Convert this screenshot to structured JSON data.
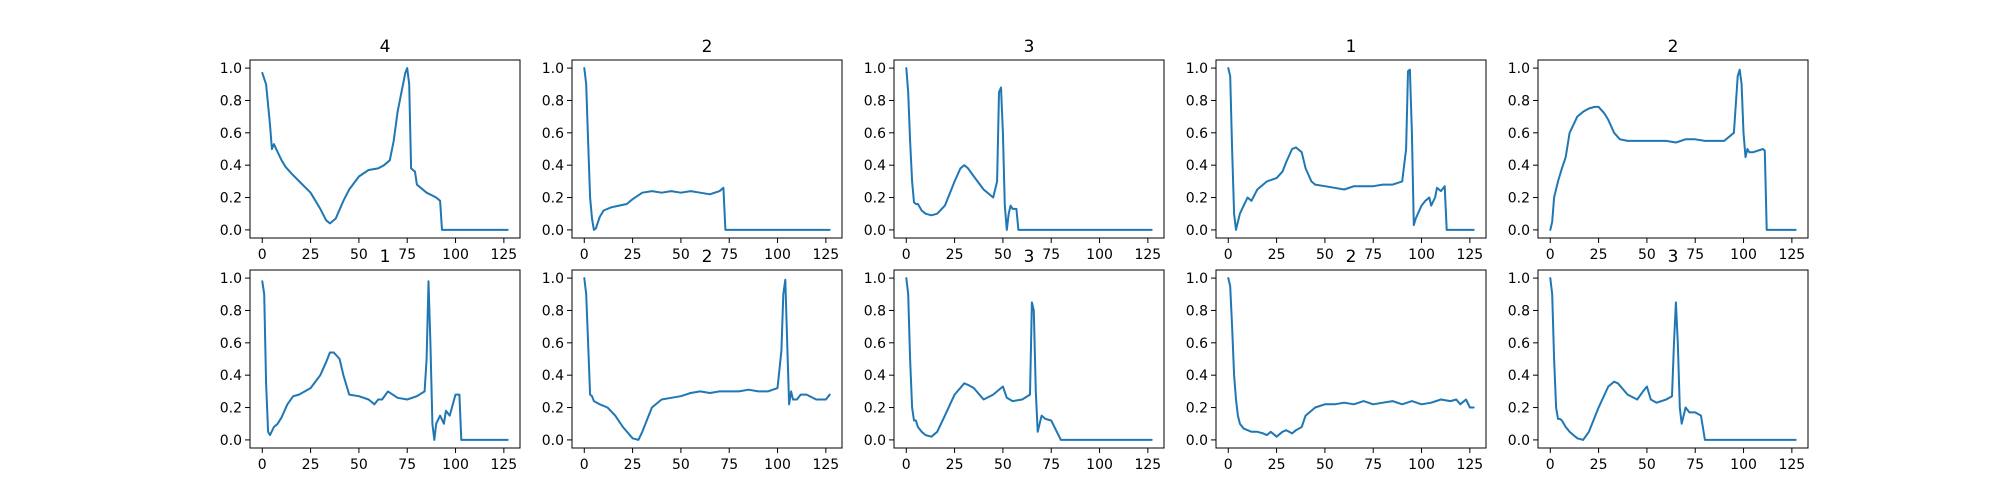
{
  "figure": {
    "background": "#ffffff"
  },
  "series_color": "#1f77b4",
  "chart_data": [
    {
      "type": "line",
      "title": "4",
      "xlim": [
        0,
        127
      ],
      "ylim": [
        0,
        1
      ],
      "xticks": [
        "0",
        "25",
        "50",
        "75",
        "100",
        "125"
      ],
      "yticks": [
        "0.0",
        "0.2",
        "0.4",
        "0.6",
        "0.8",
        "1.0"
      ],
      "series": [
        {
          "x": [
            0,
            2,
            4,
            5,
            6,
            8,
            10,
            12,
            15,
            20,
            25,
            30,
            33,
            35,
            38,
            42,
            45,
            50,
            55,
            60,
            63,
            66,
            68,
            70,
            72,
            74,
            75,
            76,
            77,
            79,
            80,
            85,
            90,
            92,
            93,
            95,
            100,
            110,
            120,
            127
          ],
          "y": [
            0.97,
            0.9,
            0.65,
            0.5,
            0.53,
            0.48,
            0.43,
            0.39,
            0.35,
            0.29,
            0.23,
            0.13,
            0.06,
            0.04,
            0.07,
            0.18,
            0.25,
            0.33,
            0.37,
            0.38,
            0.4,
            0.43,
            0.55,
            0.73,
            0.85,
            0.97,
            1.0,
            0.9,
            0.38,
            0.36,
            0.28,
            0.23,
            0.2,
            0.18,
            0.0,
            0.0,
            0.0,
            0.0,
            0.0,
            0.0
          ]
        }
      ]
    },
    {
      "type": "line",
      "title": "2",
      "xlim": [
        0,
        127
      ],
      "ylim": [
        0,
        1
      ],
      "xticks": [
        "0",
        "25",
        "50",
        "75",
        "100",
        "125"
      ],
      "yticks": [
        "0.0",
        "0.2",
        "0.4",
        "0.6",
        "0.8",
        "1.0"
      ],
      "series": [
        {
          "x": [
            0,
            1,
            2,
            3,
            4,
            5,
            6,
            8,
            10,
            14,
            18,
            22,
            25,
            30,
            35,
            40,
            45,
            50,
            55,
            60,
            65,
            70,
            72,
            73,
            75,
            80,
            100,
            127
          ],
          "y": [
            1.0,
            0.9,
            0.55,
            0.2,
            0.07,
            0.0,
            0.01,
            0.08,
            0.12,
            0.14,
            0.15,
            0.16,
            0.19,
            0.23,
            0.24,
            0.23,
            0.24,
            0.23,
            0.24,
            0.23,
            0.22,
            0.24,
            0.26,
            0.0,
            0.0,
            0.0,
            0.0,
            0.0
          ]
        }
      ]
    },
    {
      "type": "line",
      "title": "3",
      "xlim": [
        0,
        127
      ],
      "ylim": [
        0,
        1
      ],
      "xticks": [
        "0",
        "25",
        "50",
        "75",
        "100",
        "125"
      ],
      "yticks": [
        "0.0",
        "0.2",
        "0.4",
        "0.6",
        "0.8",
        "1.0"
      ],
      "series": [
        {
          "x": [
            0,
            1,
            2,
            3,
            4,
            5,
            6,
            8,
            10,
            13,
            16,
            20,
            25,
            28,
            30,
            32,
            35,
            40,
            45,
            47,
            48,
            49,
            50,
            51,
            52,
            53,
            54,
            55,
            57,
            58,
            60,
            70,
            100,
            127
          ],
          "y": [
            1.0,
            0.85,
            0.55,
            0.3,
            0.17,
            0.16,
            0.16,
            0.12,
            0.1,
            0.09,
            0.1,
            0.15,
            0.3,
            0.38,
            0.4,
            0.38,
            0.33,
            0.25,
            0.2,
            0.3,
            0.85,
            0.88,
            0.6,
            0.15,
            0.0,
            0.1,
            0.15,
            0.13,
            0.13,
            0.0,
            0.0,
            0.0,
            0.0,
            0.0
          ]
        }
      ]
    },
    {
      "type": "line",
      "title": "1",
      "xlim": [
        0,
        127
      ],
      "ylim": [
        0,
        1
      ],
      "xticks": [
        "0",
        "25",
        "50",
        "75",
        "100",
        "125"
      ],
      "yticks": [
        "0.0",
        "0.2",
        "0.4",
        "0.6",
        "0.8",
        "1.0"
      ],
      "series": [
        {
          "x": [
            0,
            1,
            2,
            3,
            4,
            5,
            6,
            8,
            10,
            12,
            15,
            18,
            20,
            25,
            28,
            30,
            33,
            35,
            38,
            40,
            43,
            45,
            50,
            55,
            60,
            65,
            70,
            75,
            80,
            85,
            90,
            92,
            93,
            94,
            95,
            96,
            97,
            100,
            102,
            104,
            105,
            107,
            108,
            110,
            112,
            113,
            115,
            120,
            127
          ],
          "y": [
            1.0,
            0.95,
            0.5,
            0.1,
            0.0,
            0.05,
            0.1,
            0.15,
            0.2,
            0.18,
            0.25,
            0.28,
            0.3,
            0.32,
            0.36,
            0.42,
            0.5,
            0.51,
            0.48,
            0.38,
            0.3,
            0.28,
            0.27,
            0.26,
            0.25,
            0.27,
            0.27,
            0.27,
            0.28,
            0.28,
            0.3,
            0.5,
            0.98,
            0.99,
            0.6,
            0.03,
            0.07,
            0.15,
            0.18,
            0.2,
            0.15,
            0.2,
            0.26,
            0.24,
            0.27,
            0.0,
            0.0,
            0.0,
            0.0
          ]
        }
      ]
    },
    {
      "type": "line",
      "title": "2",
      "xlim": [
        0,
        127
      ],
      "ylim": [
        0,
        1
      ],
      "xticks": [
        "0",
        "25",
        "50",
        "75",
        "100",
        "125"
      ],
      "yticks": [
        "0.0",
        "0.2",
        "0.4",
        "0.6",
        "0.8",
        "1.0"
      ],
      "series": [
        {
          "x": [
            0,
            1,
            2,
            4,
            6,
            8,
            10,
            12,
            14,
            17,
            20,
            23,
            25,
            28,
            30,
            33,
            36,
            40,
            50,
            60,
            65,
            70,
            75,
            80,
            85,
            90,
            95,
            97,
            98,
            99,
            100,
            101,
            102,
            103,
            105,
            110,
            111,
            112,
            115,
            120,
            127
          ],
          "y": [
            0.0,
            0.05,
            0.2,
            0.3,
            0.38,
            0.45,
            0.6,
            0.65,
            0.7,
            0.73,
            0.75,
            0.76,
            0.76,
            0.72,
            0.68,
            0.6,
            0.56,
            0.55,
            0.55,
            0.55,
            0.54,
            0.56,
            0.56,
            0.55,
            0.55,
            0.55,
            0.6,
            0.95,
            0.99,
            0.9,
            0.6,
            0.45,
            0.5,
            0.48,
            0.48,
            0.5,
            0.49,
            0.0,
            0.0,
            0.0,
            0.0
          ]
        }
      ]
    },
    {
      "type": "line",
      "title": "1",
      "xlim": [
        0,
        127
      ],
      "ylim": [
        0,
        1
      ],
      "xticks": [
        "0",
        "25",
        "50",
        "75",
        "100",
        "125"
      ],
      "yticks": [
        "0.0",
        "0.2",
        "0.4",
        "0.6",
        "0.8",
        "1.0"
      ],
      "series": [
        {
          "x": [
            0,
            1,
            2,
            3,
            4,
            6,
            8,
            10,
            13,
            16,
            19,
            22,
            25,
            30,
            33,
            35,
            37,
            40,
            42,
            45,
            50,
            55,
            58,
            60,
            62,
            65,
            70,
            75,
            80,
            84,
            85,
            86,
            87,
            88,
            89,
            90,
            92,
            94,
            95,
            97,
            100,
            102,
            103,
            105,
            110,
            127
          ],
          "y": [
            0.98,
            0.9,
            0.35,
            0.05,
            0.03,
            0.08,
            0.1,
            0.14,
            0.22,
            0.27,
            0.28,
            0.3,
            0.32,
            0.4,
            0.48,
            0.54,
            0.54,
            0.5,
            0.4,
            0.28,
            0.27,
            0.25,
            0.22,
            0.25,
            0.25,
            0.3,
            0.26,
            0.25,
            0.27,
            0.3,
            0.5,
            0.98,
            0.6,
            0.1,
            0.0,
            0.1,
            0.15,
            0.1,
            0.18,
            0.15,
            0.28,
            0.28,
            0.0,
            0.0,
            0.0,
            0.0
          ]
        }
      ]
    },
    {
      "type": "line",
      "title": "2",
      "xlim": [
        0,
        127
      ],
      "ylim": [
        0,
        1
      ],
      "xticks": [
        "0",
        "25",
        "50",
        "75",
        "100",
        "125"
      ],
      "yticks": [
        "0.0",
        "0.2",
        "0.4",
        "0.6",
        "0.8",
        "1.0"
      ],
      "series": [
        {
          "x": [
            0,
            1,
            2,
            3,
            4,
            5,
            8,
            12,
            16,
            20,
            25,
            28,
            30,
            35,
            40,
            45,
            50,
            55,
            60,
            65,
            70,
            75,
            80,
            85,
            90,
            95,
            100,
            102,
            103,
            104,
            105,
            106,
            107,
            108,
            110,
            112,
            115,
            120,
            125,
            127
          ],
          "y": [
            1.0,
            0.9,
            0.6,
            0.28,
            0.27,
            0.24,
            0.22,
            0.2,
            0.15,
            0.08,
            0.01,
            0.0,
            0.05,
            0.2,
            0.25,
            0.26,
            0.27,
            0.29,
            0.3,
            0.29,
            0.3,
            0.3,
            0.3,
            0.31,
            0.3,
            0.3,
            0.32,
            0.55,
            0.9,
            0.99,
            0.6,
            0.22,
            0.3,
            0.25,
            0.25,
            0.28,
            0.28,
            0.25,
            0.25,
            0.28
          ]
        }
      ]
    },
    {
      "type": "line",
      "title": "3",
      "xlim": [
        0,
        127
      ],
      "ylim": [
        0,
        1
      ],
      "xticks": [
        "0",
        "25",
        "50",
        "75",
        "100",
        "125"
      ],
      "yticks": [
        "0.0",
        "0.2",
        "0.4",
        "0.6",
        "0.8",
        "1.0"
      ],
      "series": [
        {
          "x": [
            0,
            1,
            2,
            3,
            4,
            5,
            6,
            8,
            10,
            13,
            16,
            20,
            25,
            30,
            32,
            35,
            40,
            45,
            50,
            52,
            55,
            60,
            64,
            65,
            66,
            67,
            68,
            70,
            72,
            75,
            80,
            90,
            127
          ],
          "y": [
            1.0,
            0.9,
            0.5,
            0.2,
            0.12,
            0.12,
            0.08,
            0.05,
            0.03,
            0.02,
            0.05,
            0.15,
            0.28,
            0.35,
            0.34,
            0.32,
            0.25,
            0.28,
            0.33,
            0.26,
            0.24,
            0.25,
            0.28,
            0.85,
            0.8,
            0.3,
            0.05,
            0.15,
            0.13,
            0.12,
            0.0,
            0.0,
            0.0
          ]
        }
      ]
    },
    {
      "type": "line",
      "title": "2",
      "xlim": [
        0,
        127
      ],
      "ylim": [
        0,
        1
      ],
      "xticks": [
        "0",
        "25",
        "50",
        "75",
        "100",
        "125"
      ],
      "yticks": [
        "0.0",
        "0.2",
        "0.4",
        "0.6",
        "0.8",
        "1.0"
      ],
      "series": [
        {
          "x": [
            0,
            1,
            2,
            3,
            4,
            5,
            6,
            8,
            10,
            12,
            15,
            18,
            20,
            22,
            25,
            28,
            30,
            33,
            35,
            38,
            40,
            45,
            50,
            55,
            60,
            65,
            70,
            75,
            80,
            85,
            90,
            95,
            100,
            105,
            110,
            115,
            118,
            120,
            123,
            125,
            127
          ],
          "y": [
            1.0,
            0.95,
            0.7,
            0.4,
            0.25,
            0.15,
            0.1,
            0.07,
            0.06,
            0.05,
            0.05,
            0.04,
            0.03,
            0.05,
            0.02,
            0.05,
            0.06,
            0.04,
            0.06,
            0.08,
            0.15,
            0.2,
            0.22,
            0.22,
            0.23,
            0.22,
            0.24,
            0.22,
            0.23,
            0.24,
            0.22,
            0.24,
            0.22,
            0.23,
            0.25,
            0.24,
            0.25,
            0.22,
            0.25,
            0.2,
            0.2
          ]
        }
      ]
    },
    {
      "type": "line",
      "title": "3",
      "xlim": [
        0,
        127
      ],
      "ylim": [
        0,
        1
      ],
      "xticks": [
        "0",
        "25",
        "50",
        "75",
        "100",
        "125"
      ],
      "yticks": [
        "0.0",
        "0.2",
        "0.4",
        "0.6",
        "0.8",
        "1.0"
      ],
      "series": [
        {
          "x": [
            0,
            1,
            2,
            3,
            4,
            5,
            6,
            8,
            10,
            12,
            14,
            17,
            20,
            25,
            30,
            33,
            35,
            40,
            45,
            48,
            50,
            52,
            55,
            60,
            63,
            64,
            65,
            66,
            67,
            68,
            70,
            72,
            75,
            78,
            80,
            85,
            100,
            127
          ],
          "y": [
            1.0,
            0.9,
            0.5,
            0.2,
            0.13,
            0.13,
            0.12,
            0.08,
            0.05,
            0.03,
            0.01,
            0.0,
            0.05,
            0.2,
            0.33,
            0.36,
            0.35,
            0.28,
            0.25,
            0.3,
            0.33,
            0.25,
            0.23,
            0.25,
            0.27,
            0.6,
            0.85,
            0.6,
            0.2,
            0.1,
            0.2,
            0.17,
            0.17,
            0.15,
            0.0,
            0.0,
            0.0,
            0.0
          ]
        }
      ]
    }
  ]
}
